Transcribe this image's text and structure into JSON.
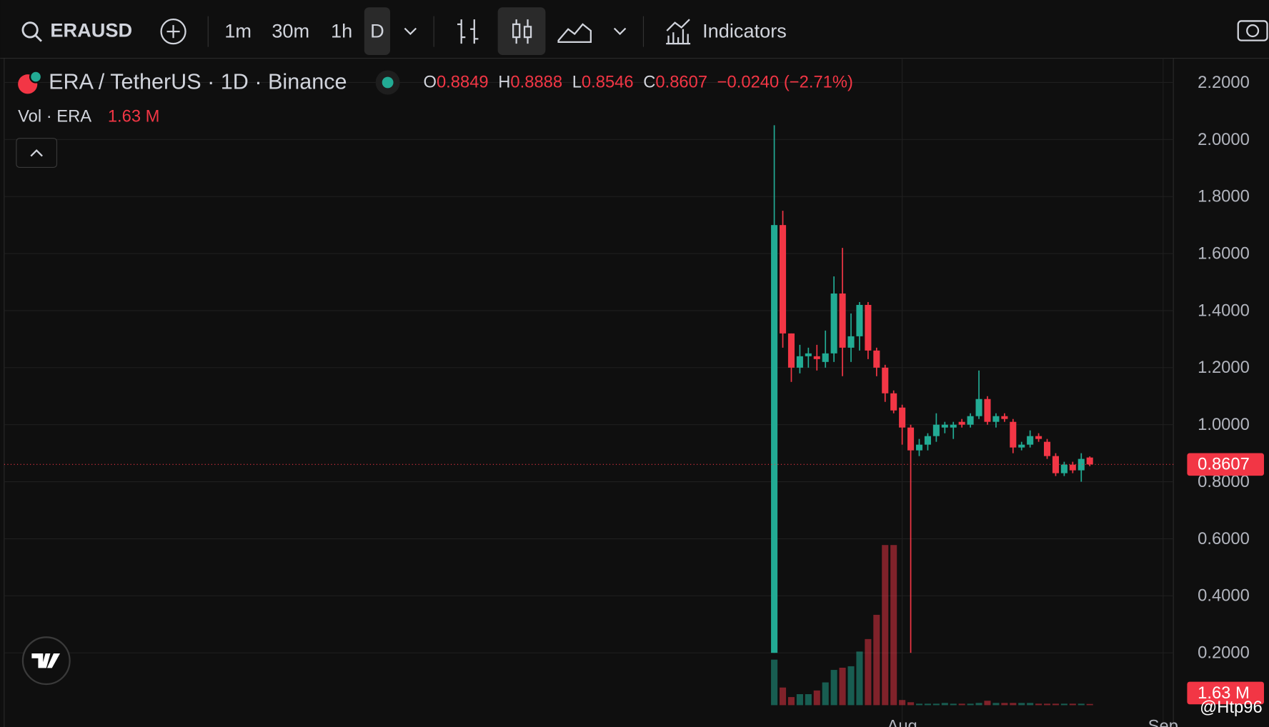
{
  "toolbar": {
    "symbol": "ERAUSD",
    "intervals": [
      "1m",
      "30m",
      "1h",
      "D"
    ],
    "indicators": "Indicators"
  },
  "chart_data": {
    "type": "candlestick",
    "title": "ERA / TetherUS · 1D · Binance",
    "ohlc_letters": [
      "O",
      "H",
      "L",
      "C"
    ],
    "change_label": "−0.0240 (−2.71%)",
    "volume_title": "Vol · ERA",
    "volume_label": "1.63 M",
    "watermark": "@Htp96",
    "up_color": "#22ab94",
    "down_color": "#f23645",
    "open": [
      0.2,
      1.7,
      1.32,
      1.2,
      1.24,
      1.24,
      1.22,
      1.25,
      1.46,
      1.27,
      1.31,
      1.42,
      1.26,
      1.2,
      1.11,
      1.06,
      0.99,
      0.91,
      0.93,
      0.96,
      0.99,
      0.99,
      1.01,
      1.0,
      1.03,
      1.09,
      1.01,
      1.03,
      1.01,
      0.92,
      0.93,
      0.96,
      0.94,
      0.89,
      0.83,
      0.86,
      0.84,
      0.8849
    ],
    "high": [
      2.05,
      1.75,
      1.32,
      1.28,
      1.27,
      1.28,
      1.33,
      1.52,
      1.62,
      1.39,
      1.43,
      1.43,
      1.27,
      1.21,
      1.12,
      1.07,
      1.0,
      0.95,
      0.97,
      1.04,
      1.01,
      1.01,
      1.02,
      1.04,
      1.19,
      1.1,
      1.04,
      1.04,
      1.02,
      0.94,
      0.98,
      0.97,
      0.95,
      0.9,
      0.87,
      0.87,
      0.9,
      0.8888
    ],
    "low": [
      0.2,
      1.27,
      1.15,
      1.18,
      1.2,
      1.19,
      1.2,
      1.22,
      1.17,
      1.22,
      1.26,
      1.23,
      1.17,
      1.08,
      1.04,
      0.93,
      0.2,
      0.89,
      0.91,
      0.94,
      0.97,
      0.95,
      0.99,
      0.99,
      1.02,
      1.0,
      0.99,
      1.01,
      0.9,
      0.91,
      0.92,
      0.94,
      0.88,
      0.82,
      0.82,
      0.83,
      0.8,
      0.8546
    ],
    "close": [
      1.7,
      1.32,
      1.2,
      1.24,
      1.25,
      1.23,
      1.25,
      1.46,
      1.27,
      1.31,
      1.42,
      1.26,
      1.2,
      1.11,
      1.05,
      0.99,
      0.91,
      0.93,
      0.96,
      1.0,
      1.0,
      1.0,
      1.0,
      1.03,
      1.09,
      1.01,
      1.03,
      1.02,
      0.92,
      0.93,
      0.96,
      0.95,
      0.89,
      0.83,
      0.86,
      0.84,
      0.88,
      0.8607
    ],
    "volume": [
      62,
      24,
      11,
      15,
      15,
      20,
      31,
      48,
      51,
      53,
      73,
      90,
      123,
      218,
      218,
      7,
      4,
      2,
      2,
      2,
      3,
      2,
      2,
      2,
      3,
      6,
      3,
      3,
      3,
      3,
      3,
      2,
      2,
      2,
      2,
      2,
      2,
      1.63
    ],
    "ylim": [
      -0.06,
      2.285
    ],
    "yticks": [
      {
        "value": 0.2,
        "label": "0.2000"
      },
      {
        "value": 0.4,
        "label": "0.4000"
      },
      {
        "value": 0.6,
        "label": "0.6000"
      },
      {
        "value": 0.8,
        "label": "0.8000"
      },
      {
        "value": 1.0,
        "label": "1.0000"
      },
      {
        "value": 1.2,
        "label": "1.2000"
      },
      {
        "value": 1.4,
        "label": "1.4000"
      },
      {
        "value": 1.6,
        "label": "1.6000"
      },
      {
        "value": 1.8,
        "label": "1.8000"
      },
      {
        "value": 2.0,
        "label": "2.0000"
      },
      {
        "value": 2.2,
        "label": "2.2000"
      }
    ],
    "xlim": [
      -90.3,
      46.8
    ],
    "xticks": [
      {
        "value": 15,
        "label": "Aug"
      },
      {
        "value": 45.6,
        "label": "Sep"
      }
    ],
    "grid": true
  }
}
